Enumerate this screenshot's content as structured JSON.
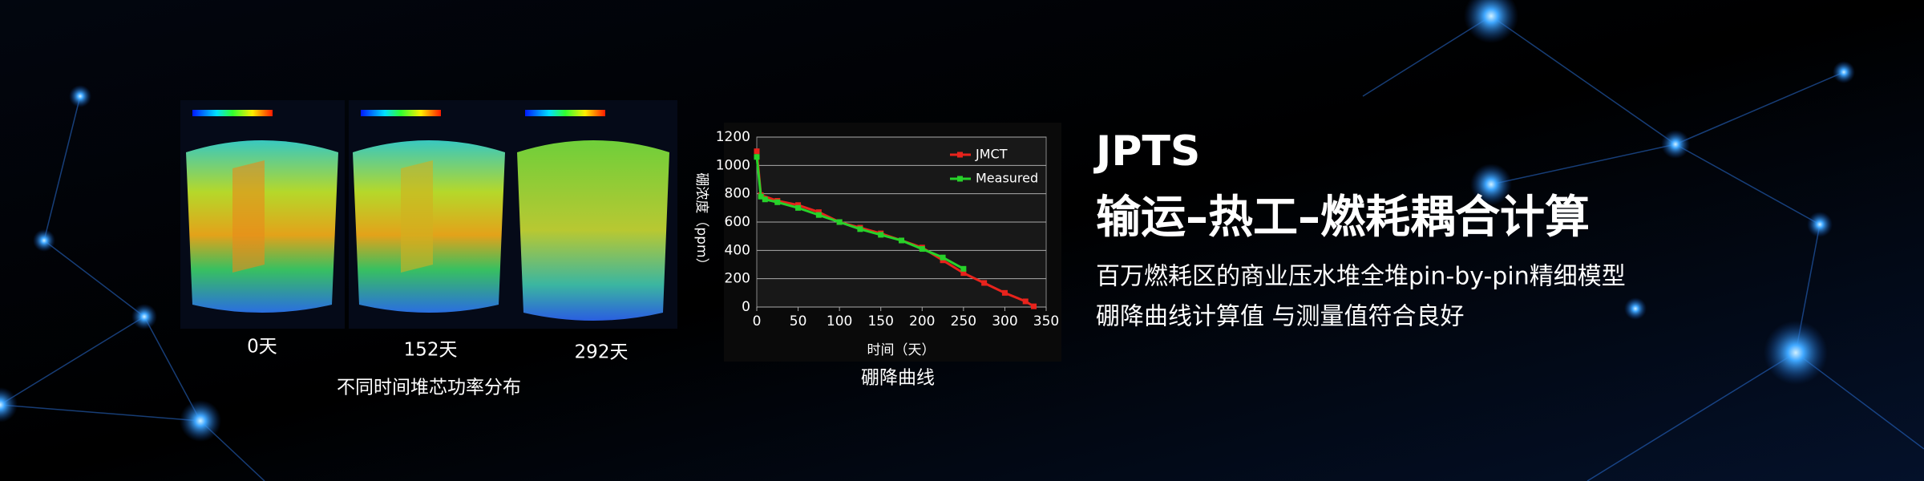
{
  "banner": {
    "heading": "JPTS",
    "title": "输运–热工–燃耗耦合计算",
    "lines": [
      "百万燃耗区的商业压水堆全堆pin-by-pin精细模型",
      "硼降曲线计算值 与测量值符合良好"
    ],
    "power_maps": {
      "labels": [
        "0天",
        "152天",
        "292天"
      ],
      "caption": "不同时间堆芯功率分布"
    },
    "curve_caption": "硼降曲线"
  },
  "chart_data": {
    "type": "line",
    "xlabel": "时间（天）",
    "ylabel": "硼浓度（ppm）",
    "xlim": [
      0,
      350
    ],
    "xticks": [
      0,
      50,
      100,
      150,
      200,
      250,
      300,
      350
    ],
    "ylim": [
      0,
      1200
    ],
    "yticks": [
      0,
      200,
      400,
      600,
      800,
      1000,
      1200
    ],
    "grid": true,
    "legend": "upper right",
    "series": [
      {
        "name": "JMCT",
        "color": "#e8231c",
        "x": [
          0,
          5,
          25,
          50,
          75,
          100,
          125,
          150,
          175,
          200,
          225,
          250,
          275,
          300,
          325,
          335
        ],
        "values": [
          1100,
          790,
          750,
          720,
          670,
          600,
          560,
          520,
          470,
          420,
          330,
          240,
          170,
          100,
          40,
          5
        ]
      },
      {
        "name": "Measured",
        "color": "#27d12a",
        "x": [
          0,
          5,
          10,
          25,
          50,
          75,
          100,
          125,
          150,
          175,
          200,
          225,
          250
        ],
        "values": [
          1060,
          780,
          760,
          740,
          700,
          650,
          600,
          550,
          510,
          470,
          410,
          350,
          270
        ]
      }
    ]
  }
}
